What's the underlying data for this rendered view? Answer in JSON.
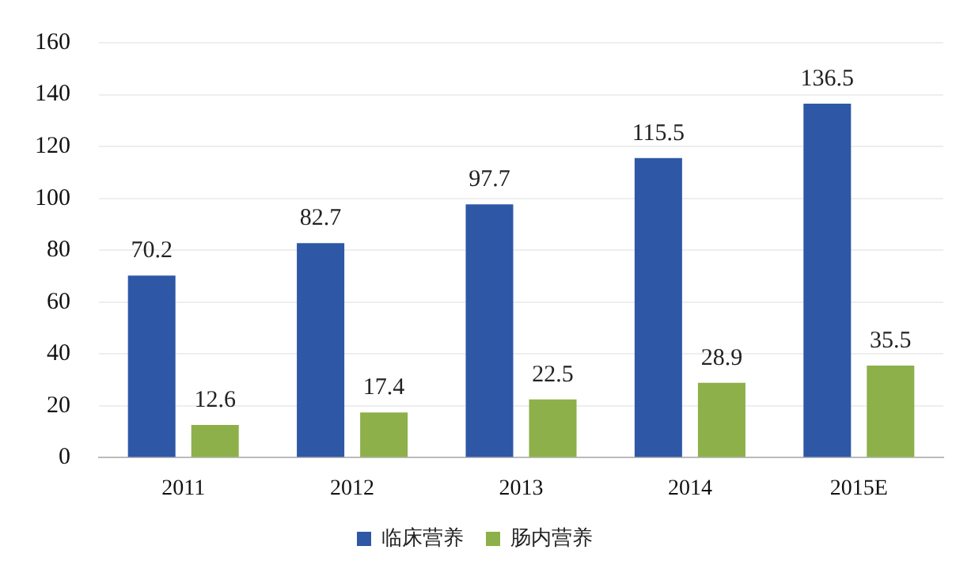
{
  "chart_data": {
    "type": "bar",
    "categories": [
      "2011",
      "2012",
      "2013",
      "2014",
      "2015E"
    ],
    "series": [
      {
        "name": "临床营养",
        "color": "#2e58a6",
        "values": [
          70.2,
          82.7,
          97.7,
          115.5,
          136.5
        ]
      },
      {
        "name": "肠内营养",
        "color": "#8db04a",
        "values": [
          12.6,
          17.4,
          22.5,
          28.9,
          35.5
        ]
      }
    ],
    "ylim": [
      0,
      160
    ],
    "yticks": [
      0,
      20,
      40,
      60,
      80,
      100,
      120,
      140,
      160
    ],
    "grid": "y",
    "legend": "bottom",
    "data_labels": true
  }
}
